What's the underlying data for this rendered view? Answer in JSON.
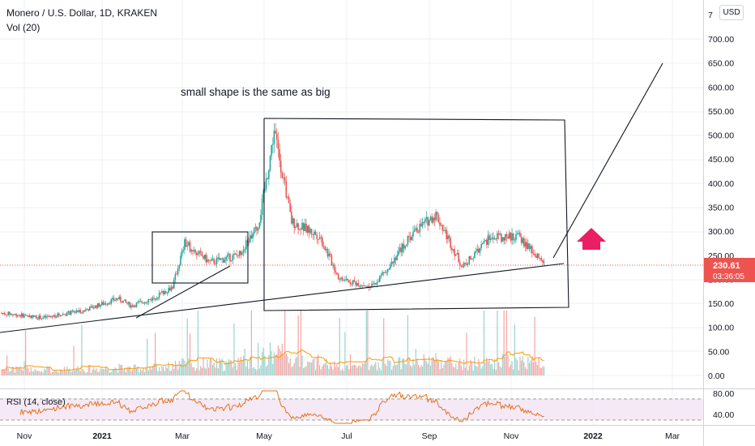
{
  "header": {
    "symbol_line": "Monero / U.S. Dollar, 1D, KRAKEN",
    "volume_label": "Vol (20)",
    "currency_badge": "USD"
  },
  "annotation": {
    "text": "small shape is the same as big"
  },
  "price_axis": {
    "top_cut_label": "7",
    "ticks": [
      "700.00",
      "650.00",
      "600.00",
      "550.00",
      "500.00",
      "450.00",
      "400.00",
      "350.00",
      "300.00",
      "250.00",
      "200.00",
      "150.00",
      "100.00",
      "50.00",
      "0.00"
    ],
    "last_price": "230.61",
    "countdown": "03:36:05"
  },
  "rsi": {
    "label": "RSI (14, close)",
    "ticks": [
      "80.00",
      "40.00"
    ]
  },
  "time_axis": {
    "labels": [
      "Nov",
      "2021",
      "Mar",
      "May",
      "Jul",
      "Sep",
      "Nov",
      "2022",
      "Mar"
    ]
  },
  "colors": {
    "up": "#26a69a",
    "down": "#ef5350",
    "arrow": "#e91e63",
    "rsi_line": "#e6711a",
    "rsi_band": "#f3e5f5",
    "ma": "#ff9800"
  },
  "chart_data": {
    "type": "candlestick",
    "title": "Monero / U.S. Dollar, 1D, KRAKEN",
    "y_axis_range": [
      75,
      720
    ],
    "x_axis_range": [
      "2020-10-15",
      "2022-03-31"
    ],
    "price_path": [
      [
        "2020-10-15",
        130
      ],
      [
        "2020-11-15",
        120
      ],
      [
        "2020-12-15",
        135
      ],
      [
        "2021-01-10",
        160
      ],
      [
        "2021-01-20",
        145
      ],
      [
        "2021-02-05",
        160
      ],
      [
        "2021-02-20",
        185
      ],
      [
        "2021-03-01",
        275
      ],
      [
        "2021-03-20",
        235
      ],
      [
        "2021-04-10",
        250
      ],
      [
        "2021-04-25",
        310
      ],
      [
        "2021-05-02",
        420
      ],
      [
        "2021-05-07",
        510
      ],
      [
        "2021-05-20",
        320
      ],
      [
        "2021-06-10",
        290
      ],
      [
        "2021-06-25",
        200
      ],
      [
        "2021-07-20",
        185
      ],
      [
        "2021-08-20",
        300
      ],
      [
        "2021-09-05",
        335
      ],
      [
        "2021-09-25",
        225
      ],
      [
        "2021-10-15",
        285
      ],
      [
        "2021-11-05",
        290
      ],
      [
        "2021-11-25",
        230
      ]
    ],
    "last_price": 230.61,
    "rsi": {
      "period": 14,
      "range": [
        20,
        90
      ],
      "levels": [
        70,
        30
      ]
    },
    "annotations": [
      "small shape is the same as big"
    ]
  }
}
